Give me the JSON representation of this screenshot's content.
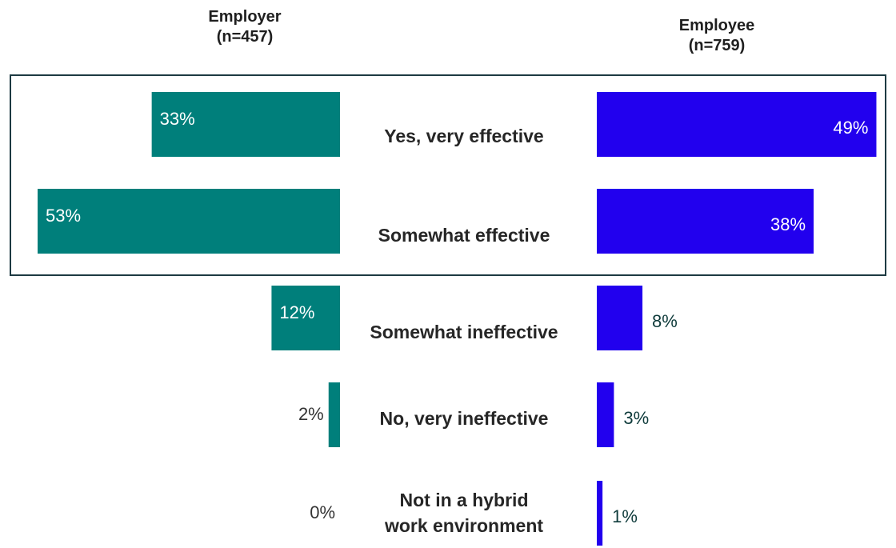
{
  "chart_data": {
    "type": "bar",
    "title": "",
    "categories": [
      "Yes, very effective",
      "Somewhat effective",
      "Somewhat ineffective",
      "No, very ineffective",
      "Not in a hybrid work environment"
    ],
    "category_lines": [
      [
        "Yes, very effective"
      ],
      [
        "Somewhat effective"
      ],
      [
        "Somewhat ineffective"
      ],
      [
        "No, very ineffective"
      ],
      [
        "Not in a hybrid",
        "work environment"
      ]
    ],
    "series": [
      {
        "name": "Employer",
        "header_lines": [
          "Employer",
          "(n=457)"
        ],
        "values": [
          33,
          53,
          12,
          2,
          0
        ],
        "labels": [
          "33%",
          "53%",
          "12%",
          "2%",
          "0%"
        ],
        "color": "#007f7b"
      },
      {
        "name": "Employee",
        "header_lines": [
          "Employee",
          "(n=759)"
        ],
        "values": [
          49,
          38,
          8,
          3,
          1
        ],
        "labels": [
          "49%",
          "38%",
          "8%",
          "3%",
          "1%"
        ],
        "color": "#2200ee"
      }
    ],
    "value_unit": "%",
    "highlight_box_categories": [
      "Yes, very effective",
      "Somewhat effective"
    ],
    "highlight_box_color": "#1d3a42",
    "inside_label_color": "#ffffff",
    "outside_label_color_employer": "#333333",
    "outside_label_color_employee": "#0f3b3b",
    "xlim": [
      0,
      53
    ],
    "grid": false,
    "legend": "none"
  }
}
